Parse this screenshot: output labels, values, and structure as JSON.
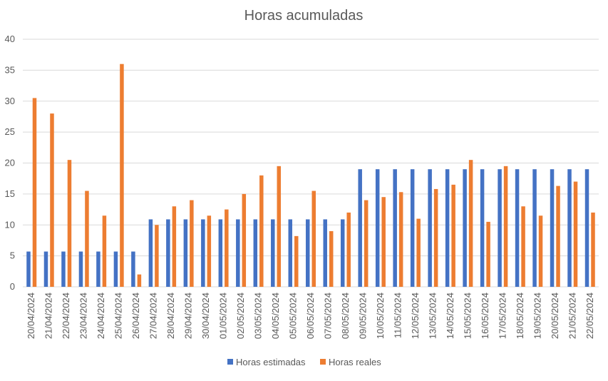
{
  "chart_data": {
    "type": "bar",
    "title": "Horas acumuladas",
    "xlabel": "",
    "ylabel": "",
    "ylim": [
      0,
      40
    ],
    "yticks": [
      0,
      5,
      10,
      15,
      20,
      25,
      30,
      35,
      40
    ],
    "grid": true,
    "legend_position": "bottom",
    "categories": [
      "20/04/2024",
      "21/04/2024",
      "22/04/2024",
      "23/04/2024",
      "24/04/2024",
      "25/04/2024",
      "26/04/2024",
      "27/04/2024",
      "28/04/2024",
      "29/04/2024",
      "30/04/2024",
      "01/05/2024",
      "02/05/2024",
      "03/05/2024",
      "04/05/2024",
      "05/05/2024",
      "06/05/2024",
      "07/05/2024",
      "08/05/2024",
      "09/05/2024",
      "10/05/2024",
      "11/05/2024",
      "12/05/2024",
      "13/05/2024",
      "14/05/2024",
      "15/05/2024",
      "16/05/2024",
      "17/05/2024",
      "18/05/2024",
      "19/05/2024",
      "20/05/2024",
      "21/05/2024",
      "22/05/2024"
    ],
    "series": [
      {
        "name": "Horas estimadas",
        "color": "#4472c4",
        "values": [
          5.7,
          5.7,
          5.7,
          5.7,
          5.7,
          5.7,
          5.7,
          10.9,
          10.9,
          10.9,
          10.9,
          10.9,
          10.9,
          10.9,
          10.9,
          10.9,
          10.9,
          10.9,
          10.9,
          19,
          19,
          19,
          19,
          19,
          19,
          19,
          19,
          19,
          19,
          19,
          19,
          19,
          19
        ]
      },
      {
        "name": "Horas reales",
        "color": "#ed7d31",
        "values": [
          30.5,
          28,
          20.5,
          15.5,
          11.5,
          36,
          2,
          10,
          13,
          14,
          11.5,
          12.5,
          15,
          18,
          19.5,
          8.2,
          15.5,
          9,
          12,
          14,
          14.5,
          15.3,
          11,
          15.8,
          16.5,
          20.5,
          10.5,
          19.5,
          13,
          11.5,
          16.3,
          17,
          12
        ]
      }
    ]
  }
}
